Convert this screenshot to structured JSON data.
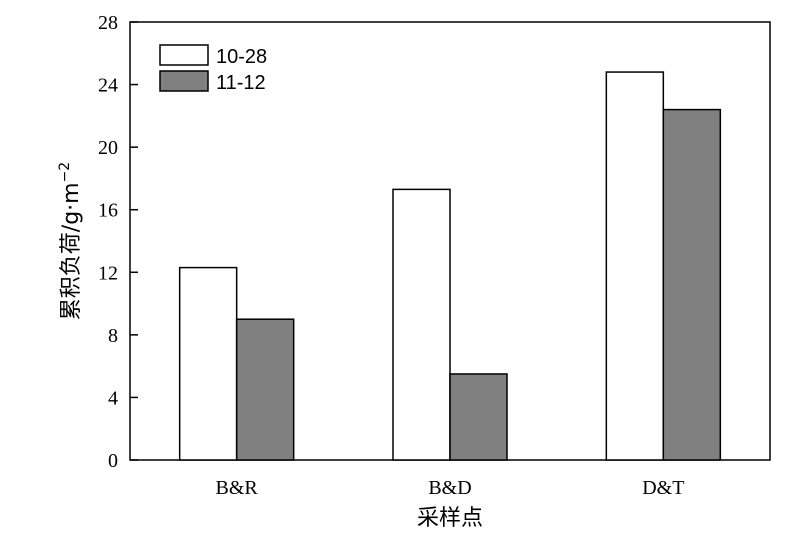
{
  "chart_data": {
    "type": "bar",
    "xlabel": "采样点",
    "ylabel": "累积负荷/g·m",
    "ylabel_superscript": "−2",
    "categories": [
      "B&R",
      "B&D",
      "D&T"
    ],
    "series": [
      {
        "name": "10-28",
        "values": [
          12.3,
          17.3,
          24.8
        ],
        "color": "#ffffff"
      },
      {
        "name": "11-12",
        "values": [
          9.0,
          5.5,
          22.4
        ],
        "color": "#808080"
      }
    ],
    "ylim": [
      0,
      28
    ],
    "yticks": [
      "0",
      "4",
      "8",
      "12",
      "16",
      "20",
      "24",
      "28"
    ],
    "grid": false,
    "legend_position": "top-left"
  }
}
